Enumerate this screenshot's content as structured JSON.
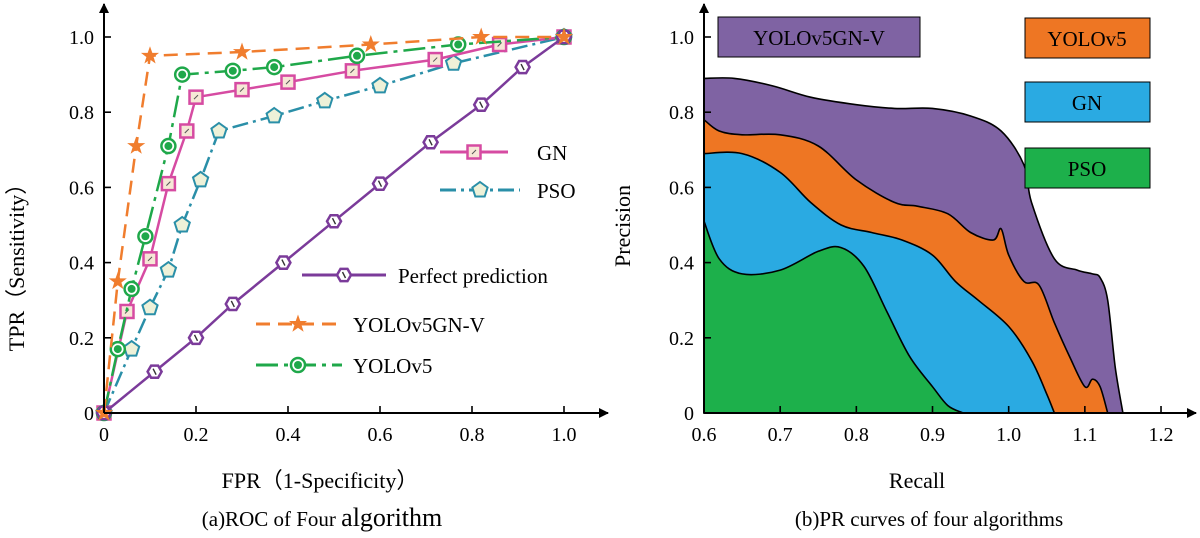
{
  "chart_data": [
    {
      "type": "line",
      "title": "",
      "caption_prefix": "(a)ROC of Four ",
      "caption_suffix": "algorithm",
      "xlabel": "FPR（1-Specificity）",
      "ylabel": "TPR（Sensitivity）",
      "xlim": [
        0,
        1.1
      ],
      "ylim": [
        0,
        1.1
      ],
      "xticks": [
        0,
        0.2,
        0.4,
        0.6,
        0.8,
        1.0
      ],
      "xtick_labels": [
        "0",
        "0.2",
        "0.4",
        "0.6",
        "0.8",
        "1.0"
      ],
      "yticks": [
        0,
        0.2,
        0.4,
        0.6,
        0.8,
        1.0
      ],
      "ytick_labels": [
        "0",
        "0.2",
        "0.4",
        "0.6",
        "0.8",
        "1.0"
      ],
      "series": [
        {
          "name": "YOLOv5GN-V",
          "color": "#f07d2e",
          "dash": "14,8",
          "marker": "star",
          "x": [
            0,
            0.03,
            0.07,
            0.1,
            0.3,
            0.58,
            0.82,
            1.0
          ],
          "y": [
            0,
            0.35,
            0.71,
            0.95,
            0.96,
            0.98,
            1.0,
            1.0
          ],
          "legend_label": "YOLOv5GN-V"
        },
        {
          "name": "YOLOv5",
          "color": "#1fa84a",
          "dash": "22,6,4,6",
          "marker": "circle",
          "x": [
            0,
            0.03,
            0.06,
            0.09,
            0.14,
            0.17,
            0.28,
            0.37,
            0.55,
            0.77,
            1.0
          ],
          "y": [
            0,
            0.17,
            0.33,
            0.47,
            0.71,
            0.9,
            0.91,
            0.92,
            0.95,
            0.98,
            1.0
          ],
          "legend_label": "YOLOv5"
        },
        {
          "name": "GN",
          "color": "#d64ba2",
          "dash": "",
          "marker": "square",
          "x": [
            0,
            0.05,
            0.1,
            0.14,
            0.18,
            0.2,
            0.3,
            0.4,
            0.54,
            0.72,
            0.86,
            1.0
          ],
          "y": [
            0,
            0.27,
            0.41,
            0.61,
            0.75,
            0.84,
            0.86,
            0.88,
            0.91,
            0.94,
            0.98,
            1.0
          ],
          "legend_label": "GN"
        },
        {
          "name": "PSO",
          "color": "#2a8fa8",
          "dash": "16,5,3,5",
          "marker": "pentagon",
          "x": [
            0,
            0.06,
            0.1,
            0.14,
            0.17,
            0.21,
            0.25,
            0.37,
            0.48,
            0.6,
            0.76,
            1.0
          ],
          "y": [
            0,
            0.17,
            0.28,
            0.38,
            0.5,
            0.62,
            0.75,
            0.79,
            0.83,
            0.87,
            0.93,
            1.0
          ],
          "legend_label": "PSO"
        },
        {
          "name": "Perfect prediction",
          "color": "#7b3b9a",
          "dash": "",
          "marker": "hexagon",
          "x": [
            0,
            0.11,
            0.2,
            0.28,
            0.39,
            0.5,
            0.6,
            0.71,
            0.82,
            0.91,
            1.0
          ],
          "y": [
            0,
            0.11,
            0.2,
            0.29,
            0.4,
            0.51,
            0.61,
            0.72,
            0.82,
            0.92,
            1.0
          ],
          "legend_label": "Perfect prediction"
        }
      ]
    },
    {
      "type": "area",
      "title": "",
      "caption": "(b)PR curves of four algorithms",
      "xlabel": "Recall",
      "ylabel": "Precision",
      "xlim": [
        0.6,
        1.2
      ],
      "ylim": [
        0,
        1.1
      ],
      "xticks": [
        0.6,
        0.7,
        0.8,
        0.9,
        1.0,
        1.1,
        1.2
      ],
      "xtick_labels": [
        "0.6",
        "0.7",
        "0.8",
        "0.9",
        "1.0",
        "1.1",
        "1.2"
      ],
      "yticks": [
        0,
        0.2,
        0.4,
        0.6,
        0.8,
        1.0
      ],
      "ytick_labels": [
        "0",
        "0.2",
        "0.4",
        "0.6",
        "0.8",
        "1.0"
      ],
      "series": [
        {
          "name": "YOLOv5GN-V",
          "color": "#7f63a3",
          "x": [
            0.6,
            0.64,
            0.69,
            0.74,
            0.8,
            0.85,
            0.9,
            0.95,
            0.99,
            1.02,
            1.03,
            1.06,
            1.09,
            1.11,
            1.12,
            1.13,
            1.14,
            1.15
          ],
          "y": [
            0.89,
            0.89,
            0.87,
            0.84,
            0.82,
            0.81,
            0.81,
            0.79,
            0.75,
            0.66,
            0.56,
            0.41,
            0.38,
            0.37,
            0.36,
            0.3,
            0.12,
            0
          ]
        },
        {
          "name": "YOLOv5",
          "color": "#ee7623",
          "x": [
            0.6,
            0.62,
            0.65,
            0.7,
            0.75,
            0.8,
            0.85,
            0.88,
            0.92,
            0.95,
            0.98,
            0.99,
            1.0,
            1.02,
            1.04,
            1.06,
            1.08,
            1.1,
            1.11,
            1.12,
            1.13
          ],
          "y": [
            0.78,
            0.75,
            0.74,
            0.74,
            0.71,
            0.62,
            0.56,
            0.55,
            0.53,
            0.48,
            0.46,
            0.49,
            0.42,
            0.35,
            0.34,
            0.24,
            0.15,
            0.07,
            0.09,
            0.07,
            0
          ]
        },
        {
          "name": "GN",
          "color": "#2aaae2",
          "x": [
            0.6,
            0.65,
            0.7,
            0.74,
            0.78,
            0.82,
            0.86,
            0.9,
            0.93,
            0.96,
            1.0,
            1.03,
            1.05,
            1.06
          ],
          "y": [
            0.69,
            0.69,
            0.64,
            0.56,
            0.5,
            0.48,
            0.46,
            0.42,
            0.35,
            0.3,
            0.23,
            0.14,
            0.05,
            0
          ]
        },
        {
          "name": "PSO",
          "color": "#1db04b",
          "x": [
            0.6,
            0.62,
            0.65,
            0.7,
            0.75,
            0.78,
            0.81,
            0.84,
            0.87,
            0.9,
            0.92,
            0.94
          ],
          "y": [
            0.51,
            0.41,
            0.37,
            0.38,
            0.43,
            0.44,
            0.39,
            0.27,
            0.15,
            0.07,
            0.02,
            0
          ]
        }
      ],
      "legend_boxes": [
        "YOLOv5GN-V",
        "YOLOv5",
        "GN",
        "PSO"
      ]
    }
  ]
}
